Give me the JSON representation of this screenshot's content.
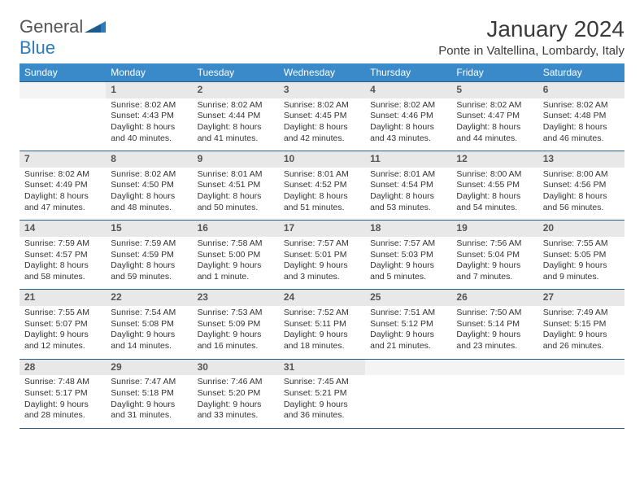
{
  "brand": {
    "text_gray": "General",
    "text_blue": "Blue"
  },
  "title": "January 2024",
  "location": "Ponte in Valtellina, Lombardy, Italy",
  "colors": {
    "header_bg": "#3a8ac9",
    "header_text": "#ffffff",
    "rule": "#2b5f8a",
    "daynum_bg": "#e8e8e8",
    "text": "#333333",
    "brand_blue": "#2b7bbf",
    "brand_gray": "#555555"
  },
  "typography": {
    "title_fontsize": 28,
    "location_fontsize": 15,
    "dow_fontsize": 12,
    "body_fontsize": 10.5,
    "daynum_fontsize": 12
  },
  "dow": [
    "Sunday",
    "Monday",
    "Tuesday",
    "Wednesday",
    "Thursday",
    "Friday",
    "Saturday"
  ],
  "weeks": [
    [
      {
        "n": "",
        "sr": "",
        "ss": "",
        "d1": "",
        "d2": ""
      },
      {
        "n": "1",
        "sr": "Sunrise: 8:02 AM",
        "ss": "Sunset: 4:43 PM",
        "d1": "Daylight: 8 hours",
        "d2": "and 40 minutes."
      },
      {
        "n": "2",
        "sr": "Sunrise: 8:02 AM",
        "ss": "Sunset: 4:44 PM",
        "d1": "Daylight: 8 hours",
        "d2": "and 41 minutes."
      },
      {
        "n": "3",
        "sr": "Sunrise: 8:02 AM",
        "ss": "Sunset: 4:45 PM",
        "d1": "Daylight: 8 hours",
        "d2": "and 42 minutes."
      },
      {
        "n": "4",
        "sr": "Sunrise: 8:02 AM",
        "ss": "Sunset: 4:46 PM",
        "d1": "Daylight: 8 hours",
        "d2": "and 43 minutes."
      },
      {
        "n": "5",
        "sr": "Sunrise: 8:02 AM",
        "ss": "Sunset: 4:47 PM",
        "d1": "Daylight: 8 hours",
        "d2": "and 44 minutes."
      },
      {
        "n": "6",
        "sr": "Sunrise: 8:02 AM",
        "ss": "Sunset: 4:48 PM",
        "d1": "Daylight: 8 hours",
        "d2": "and 46 minutes."
      }
    ],
    [
      {
        "n": "7",
        "sr": "Sunrise: 8:02 AM",
        "ss": "Sunset: 4:49 PM",
        "d1": "Daylight: 8 hours",
        "d2": "and 47 minutes."
      },
      {
        "n": "8",
        "sr": "Sunrise: 8:02 AM",
        "ss": "Sunset: 4:50 PM",
        "d1": "Daylight: 8 hours",
        "d2": "and 48 minutes."
      },
      {
        "n": "9",
        "sr": "Sunrise: 8:01 AM",
        "ss": "Sunset: 4:51 PM",
        "d1": "Daylight: 8 hours",
        "d2": "and 50 minutes."
      },
      {
        "n": "10",
        "sr": "Sunrise: 8:01 AM",
        "ss": "Sunset: 4:52 PM",
        "d1": "Daylight: 8 hours",
        "d2": "and 51 minutes."
      },
      {
        "n": "11",
        "sr": "Sunrise: 8:01 AM",
        "ss": "Sunset: 4:54 PM",
        "d1": "Daylight: 8 hours",
        "d2": "and 53 minutes."
      },
      {
        "n": "12",
        "sr": "Sunrise: 8:00 AM",
        "ss": "Sunset: 4:55 PM",
        "d1": "Daylight: 8 hours",
        "d2": "and 54 minutes."
      },
      {
        "n": "13",
        "sr": "Sunrise: 8:00 AM",
        "ss": "Sunset: 4:56 PM",
        "d1": "Daylight: 8 hours",
        "d2": "and 56 minutes."
      }
    ],
    [
      {
        "n": "14",
        "sr": "Sunrise: 7:59 AM",
        "ss": "Sunset: 4:57 PM",
        "d1": "Daylight: 8 hours",
        "d2": "and 58 minutes."
      },
      {
        "n": "15",
        "sr": "Sunrise: 7:59 AM",
        "ss": "Sunset: 4:59 PM",
        "d1": "Daylight: 8 hours",
        "d2": "and 59 minutes."
      },
      {
        "n": "16",
        "sr": "Sunrise: 7:58 AM",
        "ss": "Sunset: 5:00 PM",
        "d1": "Daylight: 9 hours",
        "d2": "and 1 minute."
      },
      {
        "n": "17",
        "sr": "Sunrise: 7:57 AM",
        "ss": "Sunset: 5:01 PM",
        "d1": "Daylight: 9 hours",
        "d2": "and 3 minutes."
      },
      {
        "n": "18",
        "sr": "Sunrise: 7:57 AM",
        "ss": "Sunset: 5:03 PM",
        "d1": "Daylight: 9 hours",
        "d2": "and 5 minutes."
      },
      {
        "n": "19",
        "sr": "Sunrise: 7:56 AM",
        "ss": "Sunset: 5:04 PM",
        "d1": "Daylight: 9 hours",
        "d2": "and 7 minutes."
      },
      {
        "n": "20",
        "sr": "Sunrise: 7:55 AM",
        "ss": "Sunset: 5:05 PM",
        "d1": "Daylight: 9 hours",
        "d2": "and 9 minutes."
      }
    ],
    [
      {
        "n": "21",
        "sr": "Sunrise: 7:55 AM",
        "ss": "Sunset: 5:07 PM",
        "d1": "Daylight: 9 hours",
        "d2": "and 12 minutes."
      },
      {
        "n": "22",
        "sr": "Sunrise: 7:54 AM",
        "ss": "Sunset: 5:08 PM",
        "d1": "Daylight: 9 hours",
        "d2": "and 14 minutes."
      },
      {
        "n": "23",
        "sr": "Sunrise: 7:53 AM",
        "ss": "Sunset: 5:09 PM",
        "d1": "Daylight: 9 hours",
        "d2": "and 16 minutes."
      },
      {
        "n": "24",
        "sr": "Sunrise: 7:52 AM",
        "ss": "Sunset: 5:11 PM",
        "d1": "Daylight: 9 hours",
        "d2": "and 18 minutes."
      },
      {
        "n": "25",
        "sr": "Sunrise: 7:51 AM",
        "ss": "Sunset: 5:12 PM",
        "d1": "Daylight: 9 hours",
        "d2": "and 21 minutes."
      },
      {
        "n": "26",
        "sr": "Sunrise: 7:50 AM",
        "ss": "Sunset: 5:14 PM",
        "d1": "Daylight: 9 hours",
        "d2": "and 23 minutes."
      },
      {
        "n": "27",
        "sr": "Sunrise: 7:49 AM",
        "ss": "Sunset: 5:15 PM",
        "d1": "Daylight: 9 hours",
        "d2": "and 26 minutes."
      }
    ],
    [
      {
        "n": "28",
        "sr": "Sunrise: 7:48 AM",
        "ss": "Sunset: 5:17 PM",
        "d1": "Daylight: 9 hours",
        "d2": "and 28 minutes."
      },
      {
        "n": "29",
        "sr": "Sunrise: 7:47 AM",
        "ss": "Sunset: 5:18 PM",
        "d1": "Daylight: 9 hours",
        "d2": "and 31 minutes."
      },
      {
        "n": "30",
        "sr": "Sunrise: 7:46 AM",
        "ss": "Sunset: 5:20 PM",
        "d1": "Daylight: 9 hours",
        "d2": "and 33 minutes."
      },
      {
        "n": "31",
        "sr": "Sunrise: 7:45 AM",
        "ss": "Sunset: 5:21 PM",
        "d1": "Daylight: 9 hours",
        "d2": "and 36 minutes."
      },
      {
        "n": "",
        "sr": "",
        "ss": "",
        "d1": "",
        "d2": ""
      },
      {
        "n": "",
        "sr": "",
        "ss": "",
        "d1": "",
        "d2": ""
      },
      {
        "n": "",
        "sr": "",
        "ss": "",
        "d1": "",
        "d2": ""
      }
    ]
  ]
}
